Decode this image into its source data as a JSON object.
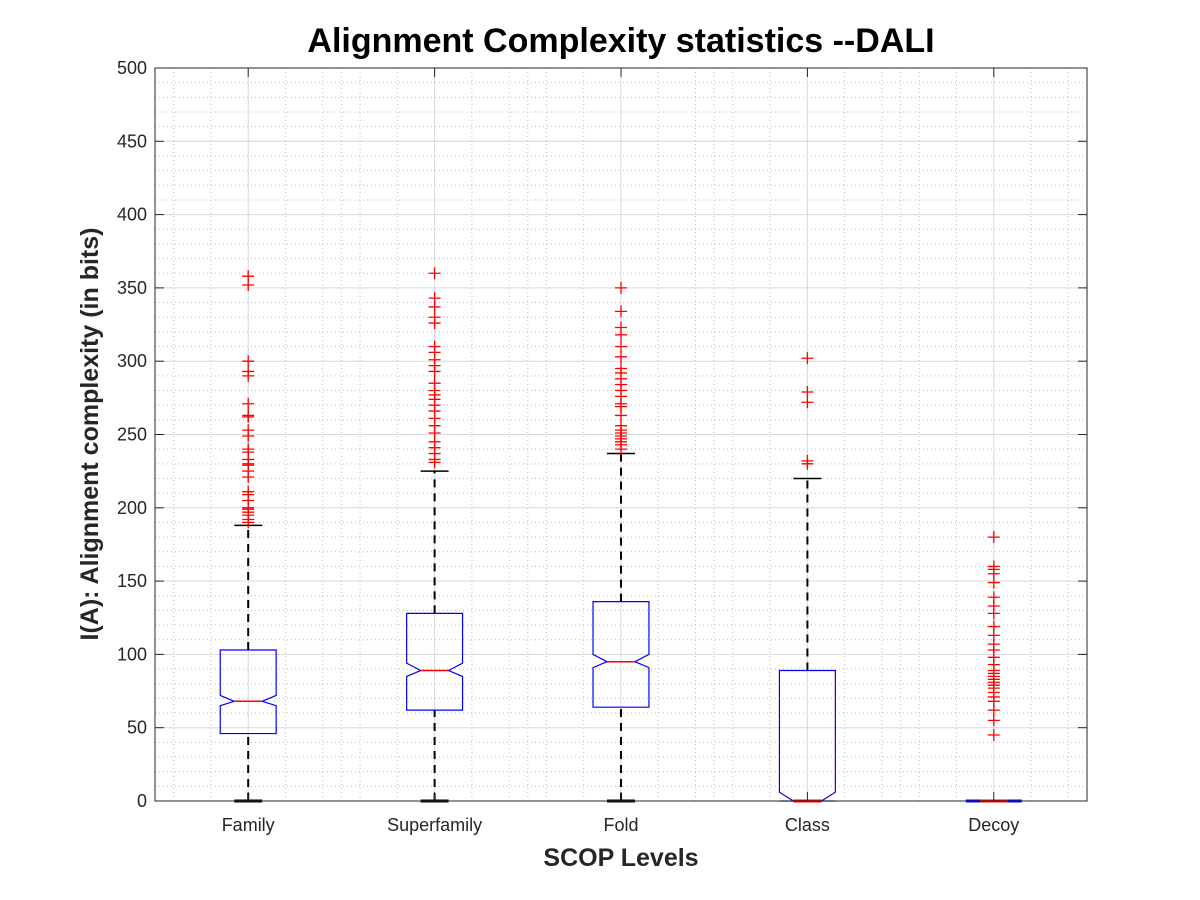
{
  "chart_data": {
    "type": "box",
    "title": "Alignment Complexity statistics --DALI",
    "xlabel": "SCOP Levels",
    "ylabel": "I(A): Alignment complexity (in bits)",
    "ylim": [
      0,
      500
    ],
    "yticks": [
      0,
      50,
      100,
      150,
      200,
      250,
      300,
      350,
      400,
      450,
      500
    ],
    "ytick_labels": [
      "0",
      "50",
      "100",
      "150",
      "200",
      "250",
      "300",
      "350",
      "400",
      "450",
      "500"
    ],
    "grid": true,
    "minor_grid": true,
    "notched": true,
    "categories": [
      "Family",
      "Superfamily",
      "Fold",
      "Class",
      "Decoy"
    ],
    "colors": {
      "box": "#0000ff",
      "median": "#ff0000",
      "whisker": "#000000",
      "outlier": "#ff0000",
      "grid": "#d9d9d9"
    },
    "boxes": [
      {
        "category": "Family",
        "whisker_low": 0,
        "q1": 46,
        "median": 68,
        "q3": 103,
        "whisker_high": 188,
        "notch_low": 65,
        "notch_high": 72,
        "outliers": [
          190,
          192,
          195,
          197,
          199,
          200,
          205,
          209,
          211,
          221,
          225,
          229,
          230,
          233,
          238,
          240,
          249,
          253,
          262,
          263,
          271,
          290,
          293,
          300,
          352,
          358
        ]
      },
      {
        "category": "Superfamily",
        "whisker_low": 0,
        "q1": 62,
        "median": 89,
        "q3": 128,
        "whisker_high": 225,
        "notch_low": 85,
        "notch_high": 94,
        "outliers": [
          231,
          233,
          237,
          241,
          245,
          251,
          256,
          261,
          266,
          270,
          274,
          277,
          280,
          285,
          293,
          297,
          301,
          306,
          310,
          326,
          330,
          337,
          343,
          360
        ]
      },
      {
        "category": "Fold",
        "whisker_low": 0,
        "q1": 64,
        "median": 95,
        "q3": 136,
        "whisker_high": 237,
        "notch_low": 91,
        "notch_high": 100,
        "outliers": [
          240,
          243,
          245,
          247,
          249,
          251,
          253,
          256,
          263,
          269,
          271,
          276,
          280,
          284,
          288,
          292,
          295,
          303,
          310,
          318,
          323,
          334,
          350
        ]
      },
      {
        "category": "Class",
        "whisker_low": 0,
        "q1": 0,
        "median": 0,
        "q3": 89,
        "whisker_high": 220,
        "notch_low": 0,
        "notch_high": 6,
        "outliers": [
          230,
          232,
          272,
          279,
          302
        ]
      },
      {
        "category": "Decoy",
        "whisker_low": 0,
        "q1": 0,
        "median": 0,
        "q3": 0,
        "whisker_high": 0,
        "notch_low": 0,
        "notch_high": 0,
        "outliers": [
          45,
          55,
          62,
          68,
          71,
          74,
          77,
          79,
          81,
          83,
          85,
          87,
          89,
          93,
          98,
          103,
          107,
          113,
          119,
          128,
          133,
          139,
          149,
          155,
          158,
          160,
          180
        ]
      }
    ]
  }
}
